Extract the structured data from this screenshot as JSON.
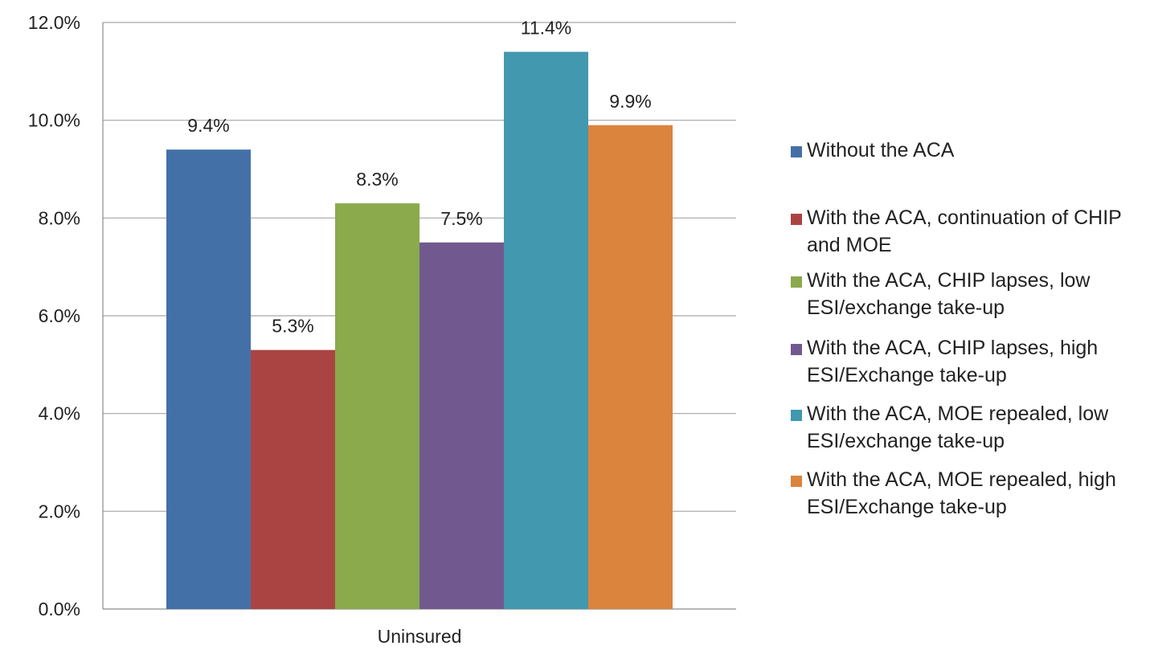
{
  "chart_data": {
    "type": "bar",
    "categories": [
      "Uninsured"
    ],
    "ylim": [
      0,
      12
    ],
    "yticks": [
      "0.0%",
      "2.0%",
      "4.0%",
      "6.0%",
      "8.0%",
      "10.0%",
      "12.0%"
    ],
    "grid": true,
    "legend_position": "right",
    "series": [
      {
        "name": "Without the ACA",
        "values": [
          9.4
        ],
        "label": "9.4%",
        "color": "#4470A8"
      },
      {
        "name": "With the ACA, continuation of CHIP and MOE",
        "values": [
          5.3
        ],
        "label": "5.3%",
        "color": "#AA4442"
      },
      {
        "name": "With the ACA, CHIP lapses, low ESI/exchange take-up",
        "values": [
          8.3
        ],
        "label": "8.3%",
        "color": "#8AAA4C"
      },
      {
        "name": "With the ACA, CHIP lapses, high ESI/Exchange take-up",
        "values": [
          7.5
        ],
        "label": "7.5%",
        "color": "#71598F"
      },
      {
        "name": "With the ACA, MOE repealed, low ESI/exchange take-up",
        "values": [
          11.4
        ],
        "label": "11.4%",
        "color": "#4198AF"
      },
      {
        "name": "With the ACA, MOE repealed, high ESI/Exchange take-up",
        "values": [
          9.9
        ],
        "label": "9.9%",
        "color": "#DB843D"
      }
    ]
  }
}
